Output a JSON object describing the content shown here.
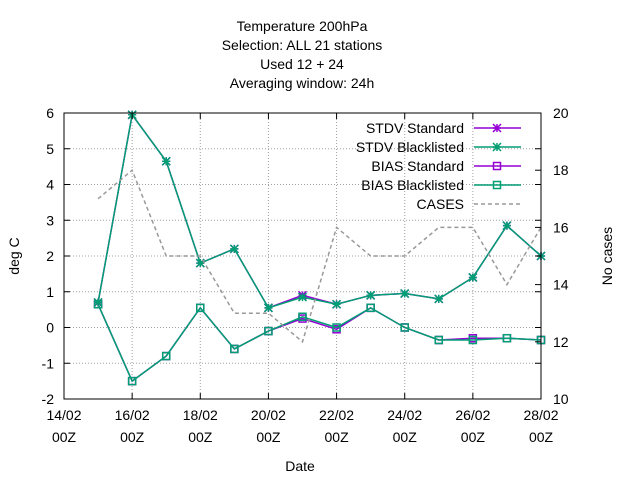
{
  "chart_data": {
    "type": "line",
    "title_lines": [
      "Temperature 200hPa",
      "Selection: ALL      21 stations",
      "Used  12  + 24",
      "Averaging window: 24h"
    ],
    "xlabel": "Date",
    "ylabel": "deg C",
    "y2label": "No cases",
    "x_ticks": [
      {
        "day": 14,
        "label1": "14/02",
        "label2": "00Z"
      },
      {
        "day": 16,
        "label1": "16/02",
        "label2": "00Z"
      },
      {
        "day": 18,
        "label1": "18/02",
        "label2": "00Z"
      },
      {
        "day": 20,
        "label1": "20/02",
        "label2": "00Z"
      },
      {
        "day": 22,
        "label1": "22/02",
        "label2": "00Z"
      },
      {
        "day": 24,
        "label1": "24/02",
        "label2": "00Z"
      },
      {
        "day": 26,
        "label1": "26/02",
        "label2": "00Z"
      },
      {
        "day": 28,
        "label1": "28/02",
        "label2": "00Z"
      }
    ],
    "xlim": [
      14,
      28
    ],
    "ylim": [
      -2,
      6
    ],
    "y_ticks": [
      -2,
      -1,
      0,
      1,
      2,
      3,
      4,
      5,
      6
    ],
    "y2lim": [
      10,
      20
    ],
    "y2_ticks": [
      10,
      12,
      14,
      16,
      18,
      20
    ],
    "grid": true,
    "legend_position": "top-right",
    "x": [
      15,
      16,
      17,
      18,
      19,
      20,
      21,
      22,
      23,
      24,
      25,
      26,
      27,
      28
    ],
    "series": [
      {
        "name": "STDV Standard",
        "axis": "y1",
        "color": "#9400d3",
        "marker": "star",
        "dash": false,
        "values": [
          0.7,
          5.95,
          4.65,
          1.8,
          2.2,
          0.55,
          0.9,
          0.65,
          0.9,
          0.95,
          0.8,
          1.4,
          2.85,
          2.0
        ]
      },
      {
        "name": "STDV Blacklisted",
        "axis": "y1",
        "color": "#009e73",
        "marker": "star",
        "dash": false,
        "values": [
          0.7,
          5.95,
          4.65,
          1.8,
          2.2,
          0.55,
          0.85,
          0.65,
          0.9,
          0.95,
          0.8,
          1.4,
          2.85,
          2.0
        ]
      },
      {
        "name": "BIAS Standard",
        "axis": "y1",
        "color": "#9400d3",
        "marker": "square",
        "dash": false,
        "values": [
          0.65,
          -1.5,
          -0.8,
          0.55,
          -0.6,
          -0.1,
          0.25,
          -0.05,
          0.55,
          0.0,
          -0.35,
          -0.3,
          -0.3,
          -0.35
        ]
      },
      {
        "name": "BIAS Blacklisted",
        "axis": "y1",
        "color": "#009e73",
        "marker": "square",
        "dash": false,
        "values": [
          0.65,
          -1.5,
          -0.8,
          0.55,
          -0.6,
          -0.1,
          0.3,
          0.0,
          0.55,
          0.0,
          -0.35,
          -0.35,
          -0.3,
          -0.35
        ]
      },
      {
        "name": "CASES",
        "axis": "y2",
        "color": "#999999",
        "marker": "none",
        "dash": true,
        "values": [
          17,
          18,
          15,
          15,
          13,
          13,
          12,
          16,
          15,
          15,
          16,
          16,
          14,
          16
        ]
      }
    ]
  }
}
